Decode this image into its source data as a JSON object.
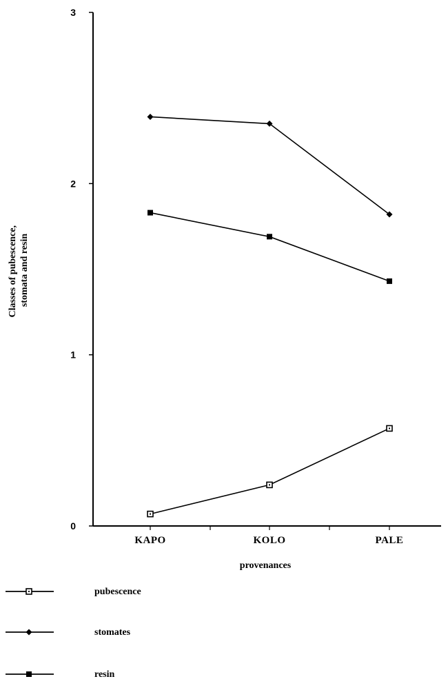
{
  "chart_data": {
    "type": "line",
    "categories": [
      "KAPO",
      "KOLO",
      "PALE"
    ],
    "xlabel": "provenances",
    "ylabel": [
      "Classes of pubescence,",
      "stomata and resin"
    ],
    "ylim": [
      0,
      3
    ],
    "yticks": [
      "0",
      "1",
      "2",
      "3"
    ],
    "grid": false,
    "legend_position": "bottom-left",
    "series": [
      {
        "name": "pubescence",
        "marker": "open-square",
        "values": [
          0.07,
          0.24,
          0.57
        ]
      },
      {
        "name": "stomates",
        "marker": "filled-diamond",
        "values": [
          2.39,
          2.35,
          1.82
        ]
      },
      {
        "name": "resin",
        "marker": "filled-square",
        "values": [
          1.83,
          1.69,
          1.43
        ]
      }
    ]
  }
}
